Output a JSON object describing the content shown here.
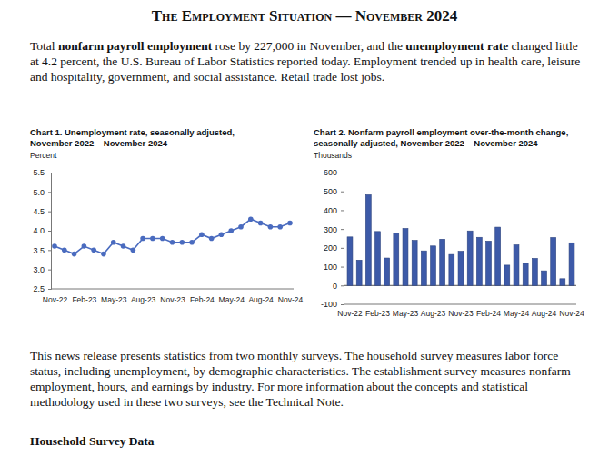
{
  "header": {
    "title": "The Employment Situation — November 2024"
  },
  "intro": [
    {
      "text": "Total ",
      "bold": false
    },
    {
      "text": "nonfarm payroll employment",
      "bold": true
    },
    {
      "text": " rose by 227,000 in November, and the ",
      "bold": false
    },
    {
      "text": "unemployment rate",
      "bold": true
    },
    {
      "text": " changed little at 4.2 percent, the U.S. Bureau of Labor Statistics reported today. Employment trended up in health care, leisure and hospitality, government, and social assistance. Retail trade lost jobs.",
      "bold": false
    }
  ],
  "chart_data": [
    {
      "type": "line",
      "title": "Chart 1. Unemployment rate, seasonally adjusted,\nNovember 2022 – November 2024",
      "y_label": "Percent",
      "categories": [
        "Nov-22",
        null,
        null,
        "Feb-23",
        null,
        null,
        "May-23",
        null,
        null,
        "Aug-23",
        null,
        null,
        "Nov-23",
        null,
        null,
        "Feb-24",
        null,
        null,
        "May-24",
        null,
        null,
        "Aug-24",
        null,
        null,
        "Nov-24"
      ],
      "values": [
        3.6,
        3.5,
        3.4,
        3.6,
        3.5,
        3.4,
        3.7,
        3.6,
        3.5,
        3.8,
        3.8,
        3.8,
        3.7,
        3.7,
        3.7,
        3.9,
        3.8,
        3.9,
        4.0,
        4.1,
        4.3,
        4.2,
        4.1,
        4.1,
        4.2
      ],
      "color": "#4a6bbf",
      "marker": "circle",
      "ylim": [
        2.5,
        5.5
      ],
      "yticks": [
        2.5,
        {
          "value": 3,
          "label": "3.0"
        },
        3.5,
        {
          "value": 4,
          "label": "4.0"
        },
        4.5,
        {
          "value": 5,
          "label": "5.0"
        },
        5.5
      ]
    },
    {
      "type": "bar",
      "title": "Chart 2. Nonfarm payroll employment over-the-month change,\nseasonally adjusted, November 2022 – November 2024",
      "y_label": "Thousands",
      "categories": [
        "Nov-22",
        null,
        null,
        "Feb-23",
        null,
        null,
        "May-23",
        null,
        null,
        "Aug-23",
        null,
        null,
        "Nov-23",
        null,
        null,
        "Feb-24",
        null,
        null,
        "May-24",
        null,
        null,
        "Aug-24",
        null,
        null,
        "Nov-24"
      ],
      "values": [
        258,
        135,
        482,
        287,
        146,
        278,
        303,
        240,
        184,
        210,
        246,
        165,
        182,
        290,
        256,
        236,
        310,
        108,
        216,
        118,
        144,
        78,
        255,
        36,
        227
      ],
      "color": "#3d5aa8",
      "ylim": [
        -100,
        600
      ],
      "yticks": [
        -100,
        0,
        100,
        200,
        300,
        400,
        500,
        600
      ]
    }
  ],
  "body": {
    "paragraph": "This news release presents statistics from two monthly surveys. The household survey measures labor force status, including unemployment, by demographic characteristics. The establishment survey measures nonfarm employment, hours, and earnings by industry. For more information about the concepts and statistical methodology used in these two surveys, see the Technical Note.",
    "section_heading": "Household Survey Data"
  }
}
